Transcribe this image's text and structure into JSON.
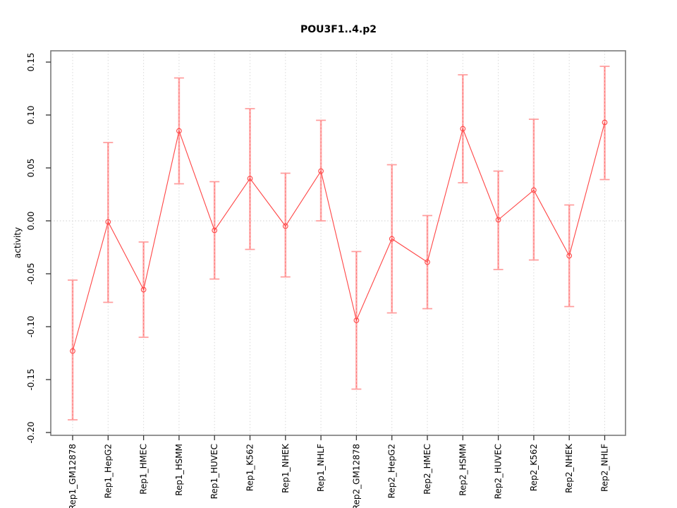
{
  "chart_data": {
    "type": "line",
    "subtype": "points-with-error-bars",
    "title": "POU3F1..4.p2",
    "xlabel": "",
    "ylabel": "activity",
    "legend": "none",
    "grid": "dotted vertical gridline at each category; dotted horizontal line at y=0",
    "marker": "open-circle",
    "ylim": [
      -0.2,
      0.15
    ],
    "yticks": [
      {
        "value": 0.15,
        "label": "0.15"
      },
      {
        "value": 0.1,
        "label": "0.10"
      },
      {
        "value": 0.05,
        "label": "0.05"
      },
      {
        "value": 0.0,
        "label": "0.00"
      },
      {
        "value": -0.05,
        "label": "-0.05"
      },
      {
        "value": -0.1,
        "label": "-0.10"
      },
      {
        "value": -0.15,
        "label": "-0.15"
      },
      {
        "value": -0.2,
        "label": "-0.20"
      }
    ],
    "categories": [
      "Rep1_GM12878",
      "Rep1_HepG2",
      "Rep1_HMEC",
      "Rep1_HSMM",
      "Rep1_HUVEC",
      "Rep1_K562",
      "Rep1_NHEK",
      "Rep1_NHLF",
      "Rep2_GM12878",
      "Rep2_HepG2",
      "Rep2_HMEC",
      "Rep2_HSMM",
      "Rep2_HUVEC",
      "Rep2_K562",
      "Rep2_NHEK",
      "Rep2_NHLF"
    ],
    "series": [
      {
        "name": "activity",
        "values": [
          -0.123,
          -0.001,
          -0.065,
          0.085,
          -0.009,
          0.04,
          -0.005,
          0.047,
          -0.094,
          -0.017,
          -0.039,
          0.087,
          0.001,
          0.029,
          -0.033,
          0.093
        ],
        "ci_high": [
          -0.056,
          0.074,
          -0.02,
          0.135,
          0.037,
          0.106,
          0.045,
          0.095,
          -0.029,
          0.053,
          0.005,
          0.138,
          0.047,
          0.096,
          0.015,
          0.146
        ],
        "ci_low": [
          -0.188,
          -0.077,
          -0.11,
          0.035,
          -0.055,
          -0.027,
          -0.053,
          0.0,
          -0.159,
          -0.087,
          -0.083,
          0.036,
          -0.046,
          -0.037,
          -0.081,
          0.039
        ]
      }
    ],
    "colors": {
      "point": "#ff4545",
      "line": "#ff4545",
      "error_bar": "#ffacac",
      "error_bar_cap": "#ff9c9c",
      "error_bar_dash": "#ff7373",
      "gridline": "#d8d8d8",
      "zero_line": "#cfcfcf",
      "plot_border": "#7a7a7a",
      "tick": "#333333",
      "text": "#000000"
    }
  }
}
